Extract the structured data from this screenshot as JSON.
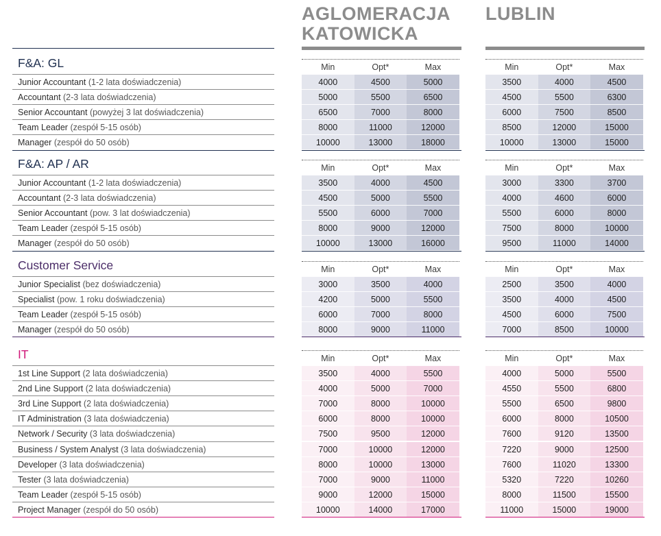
{
  "regions": [
    {
      "line1": "AGLOMERACJA",
      "line2": "KATOWICKA"
    },
    {
      "line1": "",
      "line2": "LUBLIN"
    }
  ],
  "column_headers": [
    "Min",
    "Opt*",
    "Max"
  ],
  "colors": {
    "navy": "#1f2f4f",
    "purple": "#4b2d68",
    "magenta": "#d0197a",
    "grey_header": "#8c8c8c",
    "navy_cells": [
      "#e3e5ed",
      "#d3d6e2",
      "#c3c7d6"
    ],
    "purple_cells": [
      "#ececf3",
      "#dfdfeb",
      "#d3d3e4"
    ],
    "magenta_cells": [
      "#fbf0f5",
      "#f8e3ed",
      "#f5d5e5"
    ]
  },
  "sections": [
    {
      "title": "F&A: GL",
      "theme": "navy",
      "rows": [
        {
          "role": "Junior Accountant",
          "note": " (1-2 lata doświadczenia)",
          "katowice": [
            "4000",
            "4500",
            "5000"
          ],
          "lublin": [
            "3500",
            "4000",
            "4500"
          ]
        },
        {
          "role": "Accountant",
          "note": " (2-3 lata doświadczenia)",
          "katowice": [
            "5000",
            "5500",
            "6500"
          ],
          "lublin": [
            "4500",
            "5500",
            "6300"
          ]
        },
        {
          "role": "Senior Accountant",
          "note": " (powyżej 3 lat doświadczenia)",
          "katowice": [
            "6500",
            "7000",
            "8000"
          ],
          "lublin": [
            "6000",
            "7500",
            "8500"
          ]
        },
        {
          "role": "Team Leader",
          "note": " (zespół 5-15 osób)",
          "katowice": [
            "8000",
            "11000",
            "12000"
          ],
          "lublin": [
            "8500",
            "12000",
            "15000"
          ]
        },
        {
          "role": "Manager",
          "note": " (zespół do 50 osób)",
          "katowice": [
            "10000",
            "13000",
            "18000"
          ],
          "lublin": [
            "10000",
            "13000",
            "15000"
          ]
        }
      ]
    },
    {
      "title": "F&A: AP / AR",
      "theme": "navy",
      "rows": [
        {
          "role": "Junior Accountant",
          "note": " (1-2 lata doświadczenia)",
          "katowice": [
            "3500",
            "4000",
            "4500"
          ],
          "lublin": [
            "3000",
            "3300",
            "3700"
          ]
        },
        {
          "role": "Accountant",
          "note": " (2-3 lata doświadczenia)",
          "katowice": [
            "4500",
            "5000",
            "5500"
          ],
          "lublin": [
            "4000",
            "4600",
            "6000"
          ]
        },
        {
          "role": "Senior Accountant",
          "note": " (pow. 3 lat doświadczenia)",
          "katowice": [
            "5500",
            "6000",
            "7000"
          ],
          "lublin": [
            "5500",
            "6000",
            "8000"
          ]
        },
        {
          "role": "Team Leader",
          "note": " (zespół 5-15 osób)",
          "katowice": [
            "8000",
            "9000",
            "12000"
          ],
          "lublin": [
            "7500",
            "8000",
            "10000"
          ]
        },
        {
          "role": "Manager",
          "note": " (zespół do 50 osób)",
          "katowice": [
            "10000",
            "13000",
            "16000"
          ],
          "lublin": [
            "9500",
            "11000",
            "14000"
          ]
        }
      ]
    },
    {
      "title": "Customer Service",
      "theme": "purple",
      "rows": [
        {
          "role": "Junior Specialist",
          "note": " (bez doświadczenia)",
          "katowice": [
            "3000",
            "3500",
            "4000"
          ],
          "lublin": [
            "2500",
            "3500",
            "4000"
          ]
        },
        {
          "role": "Specialist",
          "note": " (pow. 1 roku doświadczenia)",
          "katowice": [
            "4200",
            "5000",
            "5500"
          ],
          "lublin": [
            "3500",
            "4000",
            "4500"
          ]
        },
        {
          "role": "Team Leader",
          "note": " (zespół 5-15 osób)",
          "katowice": [
            "6000",
            "7000",
            "8000"
          ],
          "lublin": [
            "4500",
            "6000",
            "7500"
          ]
        },
        {
          "role": "Manager",
          "note": " (zespół do 50 osób)",
          "katowice": [
            "8000",
            "9000",
            "11000"
          ],
          "lublin": [
            "7000",
            "8500",
            "10000"
          ]
        }
      ]
    },
    {
      "title": "IT",
      "theme": "magenta",
      "rows": [
        {
          "role": "1st Line Support",
          "note": " (2 lata doświadczenia)",
          "katowice": [
            "3500",
            "4000",
            "5500"
          ],
          "lublin": [
            "4000",
            "5000",
            "5500"
          ]
        },
        {
          "role": "2nd Line Support",
          "note": " (2 lata doświadczenia)",
          "katowice": [
            "4000",
            "5000",
            "7000"
          ],
          "lublin": [
            "4550",
            "5500",
            "6800"
          ]
        },
        {
          "role": "3rd Line Support",
          "note": " (2 lata doświadczenia)",
          "katowice": [
            "7000",
            "8000",
            "10000"
          ],
          "lublin": [
            "5500",
            "6500",
            "9800"
          ]
        },
        {
          "role": "IT Administration",
          "note": " (3 lata doświadczenia)",
          "katowice": [
            "6000",
            "8000",
            "10000"
          ],
          "lublin": [
            "6000",
            "8000",
            "10500"
          ]
        },
        {
          "role": "Network / Security",
          "note": " (3 lata doświadczenia)",
          "katowice": [
            "7500",
            "9500",
            "12000"
          ],
          "lublin": [
            "7600",
            "9120",
            "13500"
          ]
        },
        {
          "role": "Business / System Analyst",
          "note": " (3 lata doświadczenia)",
          "katowice": [
            "7000",
            "10000",
            "12000"
          ],
          "lublin": [
            "7220",
            "9000",
            "12500"
          ]
        },
        {
          "role": "Developer",
          "note": " (3 lata doświadczenia)",
          "katowice": [
            "8000",
            "10000",
            "13000"
          ],
          "lublin": [
            "7600",
            "11020",
            "13300"
          ]
        },
        {
          "role": "Tester",
          "note": " (3 lata doświadczenia)",
          "katowice": [
            "7000",
            "9000",
            "11000"
          ],
          "lublin": [
            "5320",
            "7220",
            "10260"
          ]
        },
        {
          "role": "Team Leader",
          "note": " (zespół 5-15 osób)",
          "katowice": [
            "9000",
            "12000",
            "15000"
          ],
          "lublin": [
            "8000",
            "11500",
            "15500"
          ]
        },
        {
          "role": "Project Manager",
          "note": " (zespół do 50 osób)",
          "katowice": [
            "10000",
            "14000",
            "17000"
          ],
          "lublin": [
            "11000",
            "15000",
            "19000"
          ]
        }
      ]
    }
  ]
}
